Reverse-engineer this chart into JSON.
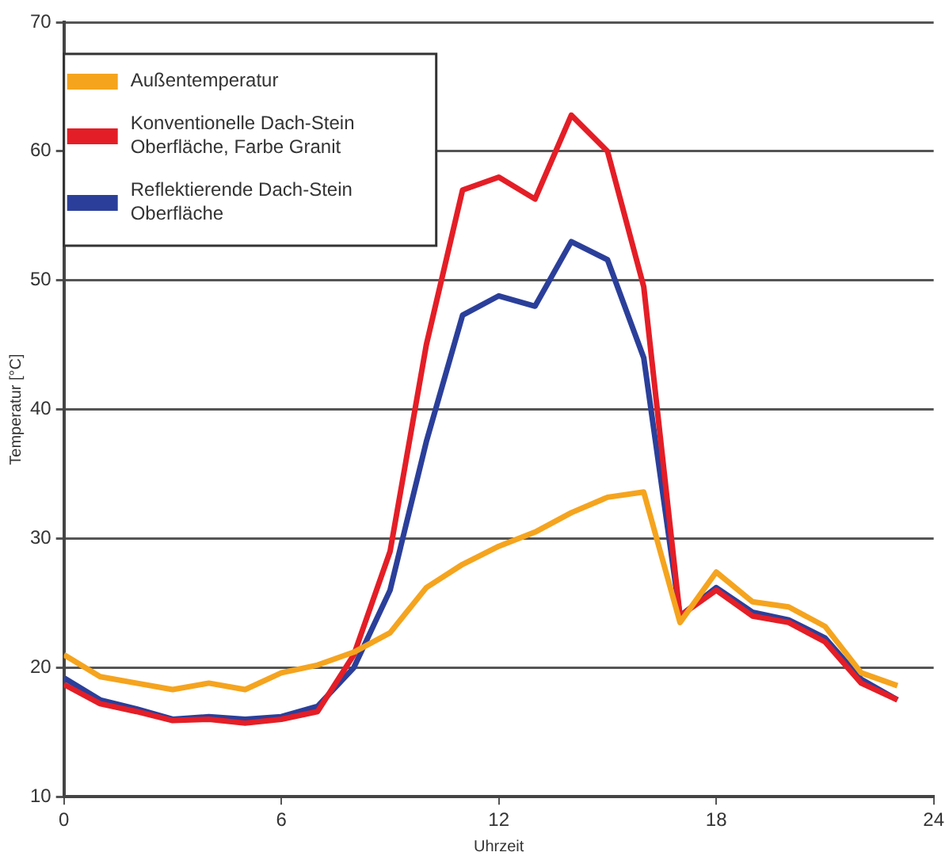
{
  "chart_data": {
    "type": "line",
    "xlabel": "Uhrzeit",
    "ylabel": "Temperatur [°C]",
    "x": [
      0,
      1,
      2,
      3,
      4,
      5,
      6,
      7,
      8,
      9,
      10,
      11,
      12,
      13,
      14,
      15,
      16,
      17,
      18,
      19,
      20,
      21,
      22,
      23
    ],
    "xlim": [
      0,
      24
    ],
    "xticks": [
      0,
      6,
      12,
      18,
      24
    ],
    "ylim": [
      10,
      70
    ],
    "yticks": [
      10,
      20,
      30,
      40,
      50,
      60,
      70
    ],
    "grid": "y",
    "legend": "top left",
    "marker": "none",
    "line_style": "solid",
    "series": [
      {
        "name": "Außentemperatur",
        "color": "#f5a41e",
        "values": [
          21,
          19.3,
          18.8,
          18.3,
          18.8,
          18.3,
          19.6,
          20.2,
          21.2,
          22.7,
          26.2,
          28,
          29.4,
          30.5,
          32,
          33.2,
          33.6,
          23.5,
          27.4,
          25.1,
          24.7,
          23.2,
          19.6,
          18.6
        ]
      },
      {
        "name": "Konventionelle Dach-Stein Oberfläche, Farbe Granit",
        "color": "#e41e26",
        "values": [
          18.7,
          17.2,
          16.6,
          15.9,
          16,
          15.7,
          16,
          16.6,
          21,
          29,
          45,
          57,
          58,
          56.3,
          62.8,
          60,
          49.5,
          24,
          26,
          24,
          23.5,
          22,
          18.8,
          17.5
        ]
      },
      {
        "name": "Reflektierende Dach-Stein Oberfläche",
        "color": "#2b3f9a",
        "values": [
          19.2,
          17.5,
          16.8,
          16,
          16.2,
          16,
          16.2,
          17,
          20,
          26,
          37.5,
          47.3,
          48.8,
          48,
          53,
          51.6,
          44,
          24,
          26.2,
          24.3,
          23.7,
          22.3,
          19.1,
          17.5
        ]
      }
    ]
  }
}
